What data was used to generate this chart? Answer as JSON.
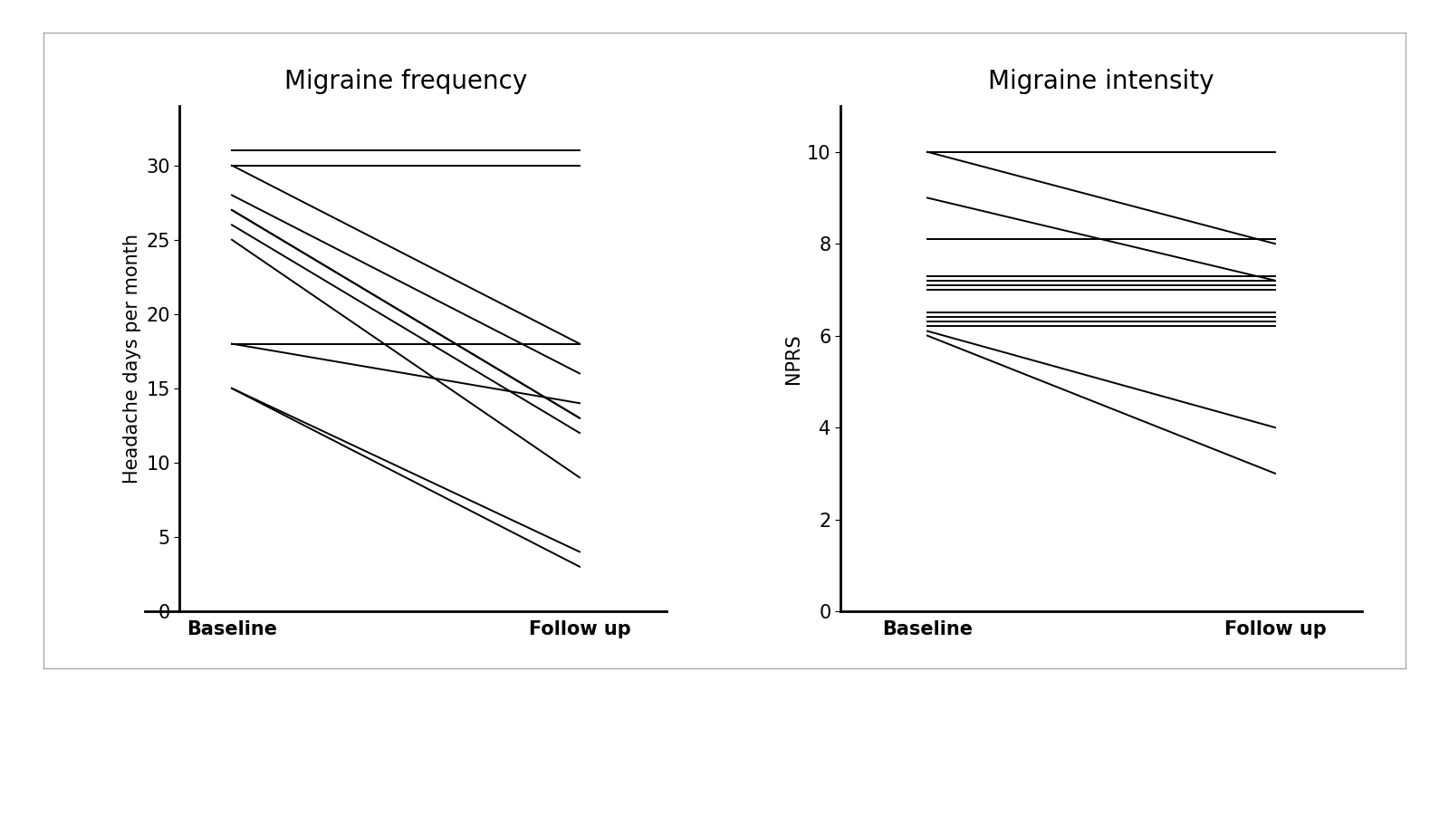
{
  "freq_title": "Migraine frequency",
  "freq_ylabel": "Headache days per month",
  "freq_xlabel_baseline": "Baseline",
  "freq_xlabel_followup": "Follow up",
  "freq_data": [
    [
      31,
      31
    ],
    [
      31,
      31
    ],
    [
      31,
      31
    ],
    [
      31,
      31
    ],
    [
      30,
      30
    ],
    [
      30,
      18
    ],
    [
      28,
      16
    ],
    [
      27,
      13
    ],
    [
      27,
      13
    ],
    [
      26,
      12
    ],
    [
      25,
      9
    ],
    [
      18,
      18
    ],
    [
      18,
      14
    ],
    [
      15,
      4
    ],
    [
      15,
      3
    ]
  ],
  "freq_ylim": [
    0,
    34
  ],
  "freq_yticks": [
    0,
    5,
    10,
    15,
    20,
    25,
    30
  ],
  "int_title": "Migraine intensity",
  "int_ylabel": "NPRS",
  "int_xlabel_baseline": "Baseline",
  "int_xlabel_followup": "Follow up",
  "int_data": [
    [
      10,
      10
    ],
    [
      10,
      8
    ],
    [
      9,
      7.2
    ],
    [
      8.1,
      8.1
    ],
    [
      7.3,
      7.3
    ],
    [
      7.2,
      7.2
    ],
    [
      7.1,
      7.1
    ],
    [
      7.0,
      7.0
    ],
    [
      6.5,
      6.5
    ],
    [
      6.4,
      6.4
    ],
    [
      6.3,
      6.3
    ],
    [
      6.2,
      6.2
    ],
    [
      6.1,
      4.0
    ],
    [
      6.0,
      3.0
    ]
  ],
  "int_ylim": [
    0,
    11
  ],
  "int_yticks": [
    0,
    2,
    4,
    6,
    8,
    10
  ],
  "line_color": "#000000",
  "background_color": "#ffffff",
  "title_fontsize": 20,
  "label_fontsize": 15,
  "tick_fontsize": 15,
  "border_color": "#aaaaaa"
}
